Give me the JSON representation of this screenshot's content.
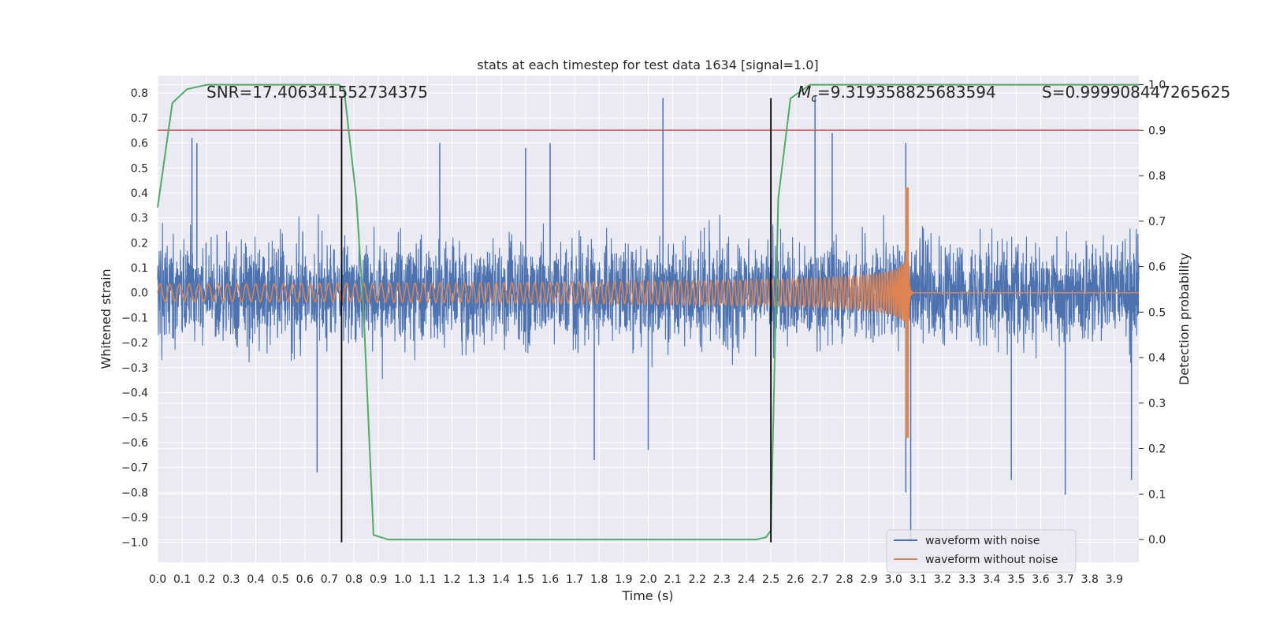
{
  "chart_data": {
    "type": "line",
    "title": "stats at each timestep for test data 1634 [signal=1.0]",
    "xlabel": "Time (s)",
    "ylabel_left": "Whitened strain",
    "ylabel_right": "Detection probability",
    "xlim": [
      0.0,
      4.0
    ],
    "ylim_left": [
      -1.08,
      0.87
    ],
    "ylim_right": [
      -0.05,
      1.02
    ],
    "x_ticks": [
      "0.0",
      "0.1",
      "0.2",
      "0.3",
      "0.4",
      "0.5",
      "0.6",
      "0.7",
      "0.8",
      "0.9",
      "1.0",
      "1.1",
      "1.2",
      "1.3",
      "1.4",
      "1.5",
      "1.6",
      "1.7",
      "1.8",
      "1.9",
      "2.0",
      "2.1",
      "2.2",
      "2.3",
      "2.4",
      "2.5",
      "2.6",
      "2.7",
      "2.8",
      "2.9",
      "3.0",
      "3.1",
      "3.2",
      "3.3",
      "3.4",
      "3.5",
      "3.6",
      "3.7",
      "3.8",
      "3.9"
    ],
    "y_left_ticks": [
      "0.8",
      "0.7",
      "0.6",
      "0.5",
      "0.4",
      "0.3",
      "0.2",
      "0.1",
      "0.0",
      "−0.1",
      "−0.2",
      "−0.3",
      "−0.4",
      "−0.5",
      "−0.6",
      "−0.7",
      "−0.8",
      "−0.9",
      "−1.0"
    ],
    "y_right_ticks": [
      "1.0",
      "0.9",
      "0.8",
      "0.7",
      "0.6",
      "0.5",
      "0.4",
      "0.3",
      "0.2",
      "0.1",
      "0.0"
    ],
    "annotations": {
      "snr": "SNR=17.406341552734375",
      "mc_symbol": "M",
      "mc_sub": "c",
      "mc_value": "=9.319358825683594",
      "s": "S=0.999908447265625"
    },
    "threshold": {
      "value": 0.9,
      "axis": "right",
      "color": "#c44e52"
    },
    "vlines": [
      0.75,
      2.5
    ],
    "vline_range": [
      -1.0,
      0.78
    ],
    "series": [
      {
        "name": "waveform with noise",
        "axis": "left",
        "color": "#4c72b0",
        "description_peaks": {
          "noise_sigma": 0.17,
          "spikes": [
            [
              0.14,
              0.62
            ],
            [
              0.16,
              0.6
            ],
            [
              0.65,
              -0.72
            ],
            [
              1.15,
              0.6
            ],
            [
              2.06,
              0.78
            ],
            [
              2.68,
              0.79
            ],
            [
              2.75,
              0.64
            ],
            [
              3.05,
              0.6
            ],
            [
              3.07,
              -1.0
            ],
            [
              3.05,
              -0.8
            ],
            [
              3.48,
              -0.75
            ],
            [
              3.7,
              -0.81
            ],
            [
              3.97,
              -0.75
            ],
            [
              1.78,
              -0.67
            ],
            [
              2.0,
              -0.63
            ],
            [
              1.5,
              0.58
            ],
            [
              1.6,
              0.6
            ]
          ]
        }
      },
      {
        "name": "waveform without noise",
        "axis": "left",
        "color": "#dd8452",
        "chirp": {
          "merger_time": 3.06,
          "amp_start": 0.035,
          "amp_peak": 0.42,
          "amp_min_peak": -0.58,
          "freq_start": 25
        }
      },
      {
        "name": "detection probability",
        "axis": "right",
        "color": "#55a868",
        "points": [
          [
            0.0,
            0.73
          ],
          [
            0.06,
            0.96
          ],
          [
            0.12,
            0.99
          ],
          [
            0.2,
            1.0
          ],
          [
            0.74,
            1.0
          ],
          [
            0.76,
            0.99
          ],
          [
            0.81,
            0.75
          ],
          [
            0.84,
            0.5
          ],
          [
            0.88,
            0.01
          ],
          [
            0.94,
            0.0
          ],
          [
            2.44,
            0.0
          ],
          [
            2.48,
            0.005
          ],
          [
            2.5,
            0.02
          ],
          [
            2.53,
            0.75
          ],
          [
            2.58,
            0.97
          ],
          [
            2.66,
            1.0
          ],
          [
            4.0,
            1.0
          ]
        ]
      }
    ],
    "legend": {
      "placement": "bottom-right",
      "entries": [
        "waveform with noise",
        "waveform without noise"
      ]
    }
  }
}
